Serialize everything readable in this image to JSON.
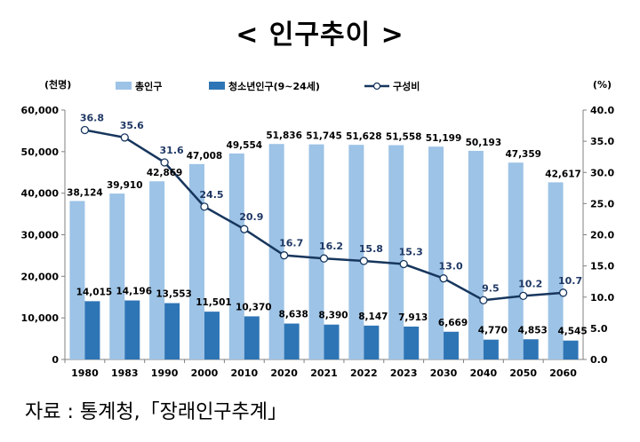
{
  "title": "< 인구추이 >",
  "source": "자료 : 통계청,「장래인구추계」",
  "chart_data": {
    "type": "bar",
    "categories": [
      "1980",
      "1983",
      "1990",
      "2000",
      "2010",
      "2020",
      "2021",
      "2022",
      "2023",
      "2030",
      "2040",
      "2050",
      "2060"
    ],
    "series": [
      {
        "name": "총인구",
        "type": "bar",
        "color": "#9dc3e6",
        "values": [
          38124,
          39910,
          42869,
          47008,
          49554,
          51836,
          51745,
          51628,
          51558,
          51199,
          50193,
          47359,
          42617
        ],
        "labels": [
          "38,124",
          "39,910",
          "42,869",
          "47,008",
          "49,554",
          "51,836",
          "51,745",
          "51,628",
          "51,558",
          "51,199",
          "50,193",
          "47,359",
          "42,617"
        ]
      },
      {
        "name": "청소년인구(9~24세)",
        "type": "bar",
        "color": "#2e75b6",
        "values": [
          14015,
          14196,
          13553,
          11501,
          10370,
          8638,
          8390,
          8147,
          7913,
          6669,
          4770,
          4853,
          4545
        ],
        "labels": [
          "14,015",
          "14,196",
          "13,553",
          "11,501",
          "10,370",
          "8,638",
          "8,390",
          "8,147",
          "7,913",
          "6,669",
          "4,770",
          "4,853",
          "4,545"
        ]
      },
      {
        "name": "구성비",
        "type": "line",
        "axis": "right",
        "color": "#17365d",
        "values": [
          36.8,
          35.6,
          31.6,
          24.5,
          20.9,
          16.7,
          16.2,
          15.8,
          15.3,
          13.0,
          9.5,
          10.2,
          10.7
        ],
        "labels": [
          "36.8",
          "35.6",
          "31.6",
          "24.5",
          "20.9",
          "16.7",
          "16.2",
          "15.8",
          "15.3",
          "13.0",
          "9.5",
          "10.2",
          "10.7"
        ]
      }
    ],
    "y_left": {
      "unit": "(천명)",
      "ylim": [
        0,
        60000
      ],
      "ticks": [
        "0",
        "10,000",
        "20,000",
        "30,000",
        "40,000",
        "50,000",
        "60,000"
      ]
    },
    "y_right": {
      "unit": "(%)",
      "ylim": [
        0,
        40
      ],
      "ticks": [
        "0.0",
        "5.0",
        "10.0",
        "15.0",
        "20.0",
        "25.0",
        "30.0",
        "35.0",
        "40.0"
      ]
    },
    "grid": false,
    "legend_position": "top"
  }
}
